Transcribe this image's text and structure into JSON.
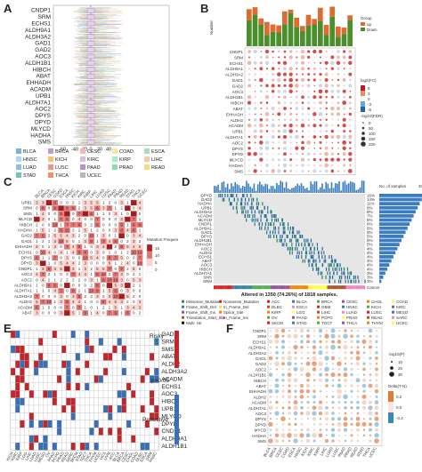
{
  "panel_labels": {
    "a": "A",
    "b": "B",
    "c": "C",
    "d": "D",
    "e": "E",
    "f": "F"
  },
  "genes_a": [
    "CNDP1",
    "SRM",
    "ECHS1",
    "ALDH9A1",
    "ALDH3A2",
    "GAD1",
    "GAD2",
    "AOC3",
    "ALDH1B1",
    "HIBCH",
    "ABAT",
    "EHHADH",
    "ACADM",
    "UPB1",
    "ALDH7A1",
    "AOC2",
    "DPYS",
    "DPYD",
    "MLYCD",
    "HADHA",
    "SMS"
  ],
  "axis_a_ticks": [
    "-60",
    "-40",
    "-20",
    "0",
    "20",
    "40"
  ],
  "cancers": [
    "BLCA",
    "BRCA",
    "CESC",
    "COAD",
    "ESCA",
    "HNSC",
    "KICH",
    "KIRC",
    "KIRP",
    "LIHC",
    "LUAD",
    "LUSC",
    "PAAD",
    "PRAD",
    "READ",
    "STAD",
    "THCA",
    "UCEC"
  ],
  "cancer_colors": [
    "#7fb3d5",
    "#c39bd3",
    "#f5b7b1",
    "#f9e79f",
    "#a9dfbf",
    "#aed6f1",
    "#f8c471",
    "#d7bde2",
    "#abebc6",
    "#f5cba7",
    "#85c1e9",
    "#f1948a",
    "#bb8fce",
    "#82e0aa",
    "#f7dc6f",
    "#73c6b6",
    "#e59866",
    "#b2babb"
  ],
  "panel_b": {
    "ylabel": "Number",
    "legend_title": "Group",
    "legend_items": [
      "up",
      "Down"
    ],
    "size_legend_title": "log2(FC)",
    "size_ticks": [
      "6",
      "3",
      "0",
      "-3",
      "-6"
    ],
    "pval_title": "-log10(FDR)",
    "pval_ticks": [
      "0",
      "50",
      "100",
      "150",
      "200"
    ],
    "genes": [
      "CNDP1",
      "SRM",
      "ECHS1",
      "ALDH9A1",
      "ALDH3A2",
      "GAD1",
      "GAD2",
      "AOC3",
      "ALDH1B1",
      "HIBCH",
      "ABAT",
      "EHHADH",
      "ALDH2",
      "ACADM",
      "UPB1",
      "ALDH7A1",
      "AOC2",
      "DPYS",
      "DPYD",
      "MLYCD",
      "HADHA",
      "SMS"
    ]
  },
  "panel_c": {
    "genes": [
      "UPB1",
      "SRM",
      "SMS",
      "MLYCD",
      "HIBCH",
      "HADHA",
      "GAD2",
      "GAD1",
      "EHHADH",
      "ECHS1",
      "DPYS",
      "DPYD",
      "CNDP1",
      "AOC3",
      "AOC2",
      "ALDH9A1",
      "ALDH7A1",
      "ALDH3A2",
      "ALDH2",
      "ACADM",
      "ABAT"
    ],
    "legend_title": "Mutation Frequency (%)",
    "legend_ticks": [
      "15",
      "10",
      "5",
      "0"
    ]
  },
  "panel_d": {
    "title": "Altered in 1350 (74.26%) of 1818 samples.",
    "genes": [
      "DPYD",
      "GAD2",
      "HADHA",
      "UPB1",
      "ALDH3A2",
      "ACADM",
      "MLYCD",
      "CNDP1",
      "ALDH9A1",
      "GAD1",
      "DPYS",
      "ALDH1B1",
      "EHHADH",
      "AOC2",
      "ALDH2",
      "ECHS1",
      "ABAT",
      "AOC3",
      "HIBCH",
      "ALDH7A1",
      "SMS",
      "SRM"
    ],
    "percents": [
      "16%",
      "14%",
      "11%",
      "8%",
      "8%",
      "7%",
      "6%",
      "6%",
      "6%",
      "5%",
      "5%",
      "5%",
      "5%",
      "4%",
      "4%",
      "4%",
      "4%",
      "4%",
      "4%",
      "3%",
      "3%",
      "3%"
    ],
    "n_label": "No. of samples",
    "n_max": "293",
    "cancer_label": "Cancer",
    "legend_mut_title": "",
    "legend_mut": [
      "Missense_Mutation",
      "Nonsense_Mutation",
      "Frame_Shift_Del",
      "In_Frame_Del",
      "Frame_Shift_Ins",
      "Splice_Site",
      "Translation_Start_Site",
      "In_Frame_Ins",
      "Multi_Hit"
    ],
    "legend_cancer": [
      "ACC",
      "BLCA",
      "BRCA",
      "CESC",
      "CHOL",
      "COAD",
      "DLBC",
      "ESCA",
      "GBM",
      "HNSC",
      "KICH",
      "KIRC",
      "KIRP",
      "LGG",
      "LIHC",
      "LUAD",
      "LUSC",
      "MESO",
      "OV",
      "PAAD",
      "PCPG",
      "PRAD",
      "READ",
      "SARC",
      "SKCM",
      "STAD",
      "TGCT",
      "THCA",
      "THYM",
      "UCEC",
      "UCS",
      "UVM",
      "NA"
    ]
  },
  "panel_e": {
    "genes": [
      "GAD1",
      "SRM",
      "SMS",
      "ABAT",
      "ALDH2",
      "ALDH3A2",
      "ACADM",
      "ECHS1",
      "AOC3",
      "HIBCH",
      "UPB1",
      "MLYCD",
      "DPYD",
      "CNDP1",
      "ALDH9A1",
      "ALDH1B1"
    ],
    "legend": [
      "Risky",
      "p>0.05",
      "Protective"
    ],
    "colors": {
      "risky": "#c0272d",
      "protective": "#3a6fb5",
      "ns": "#ffffff"
    },
    "xcancers": [
      "KICH",
      "KIRC",
      "KIRP",
      "LGG",
      "LIHC",
      "LUAD",
      "LUSC",
      "MESO",
      "OV",
      "PAAD",
      "PCPG",
      "PRAD",
      "READ",
      "SARC",
      "SKCM",
      "STAD",
      "TGCT",
      "THCA",
      "THYM",
      "UCEC",
      "UCS",
      "UVM",
      "ACC",
      "BLCA",
      "BRCA",
      "CESC",
      "CHOL",
      "COAD",
      "DLBC",
      "ESCA",
      "GBM",
      "HNSC"
    ]
  },
  "panel_f": {
    "genes": [
      "CNDP1",
      "SRM",
      "ECHS1",
      "ALDH9A1",
      "ALDH3A2",
      "GAD1",
      "GAD2",
      "AOC2",
      "ALDH1B1",
      "HIBCH",
      "ABAT",
      "EHHADH",
      "ALDH2",
      "ACADM",
      "ALDH7A1",
      "AOC3",
      "DPYS",
      "DPYD",
      "MYCD",
      "HADHA",
      "SMS"
    ],
    "size_title": "-log10(P)",
    "size_ticks": [
      "10",
      "20",
      "30"
    ],
    "color_title": "Delta(T-N)",
    "color_ticks": [
      "0.2",
      "0.0",
      "-0.2"
    ],
    "xcancers": [
      "BLCA",
      "BRCA",
      "CESC",
      "COAD",
      "ESCA",
      "HNSC",
      "KICH",
      "KIRC",
      "KIRP",
      "LIHC",
      "LUAD",
      "LUSC",
      "PAAD",
      "PRAD",
      "READ",
      "STAD",
      "THCA",
      "UCEC"
    ]
  }
}
